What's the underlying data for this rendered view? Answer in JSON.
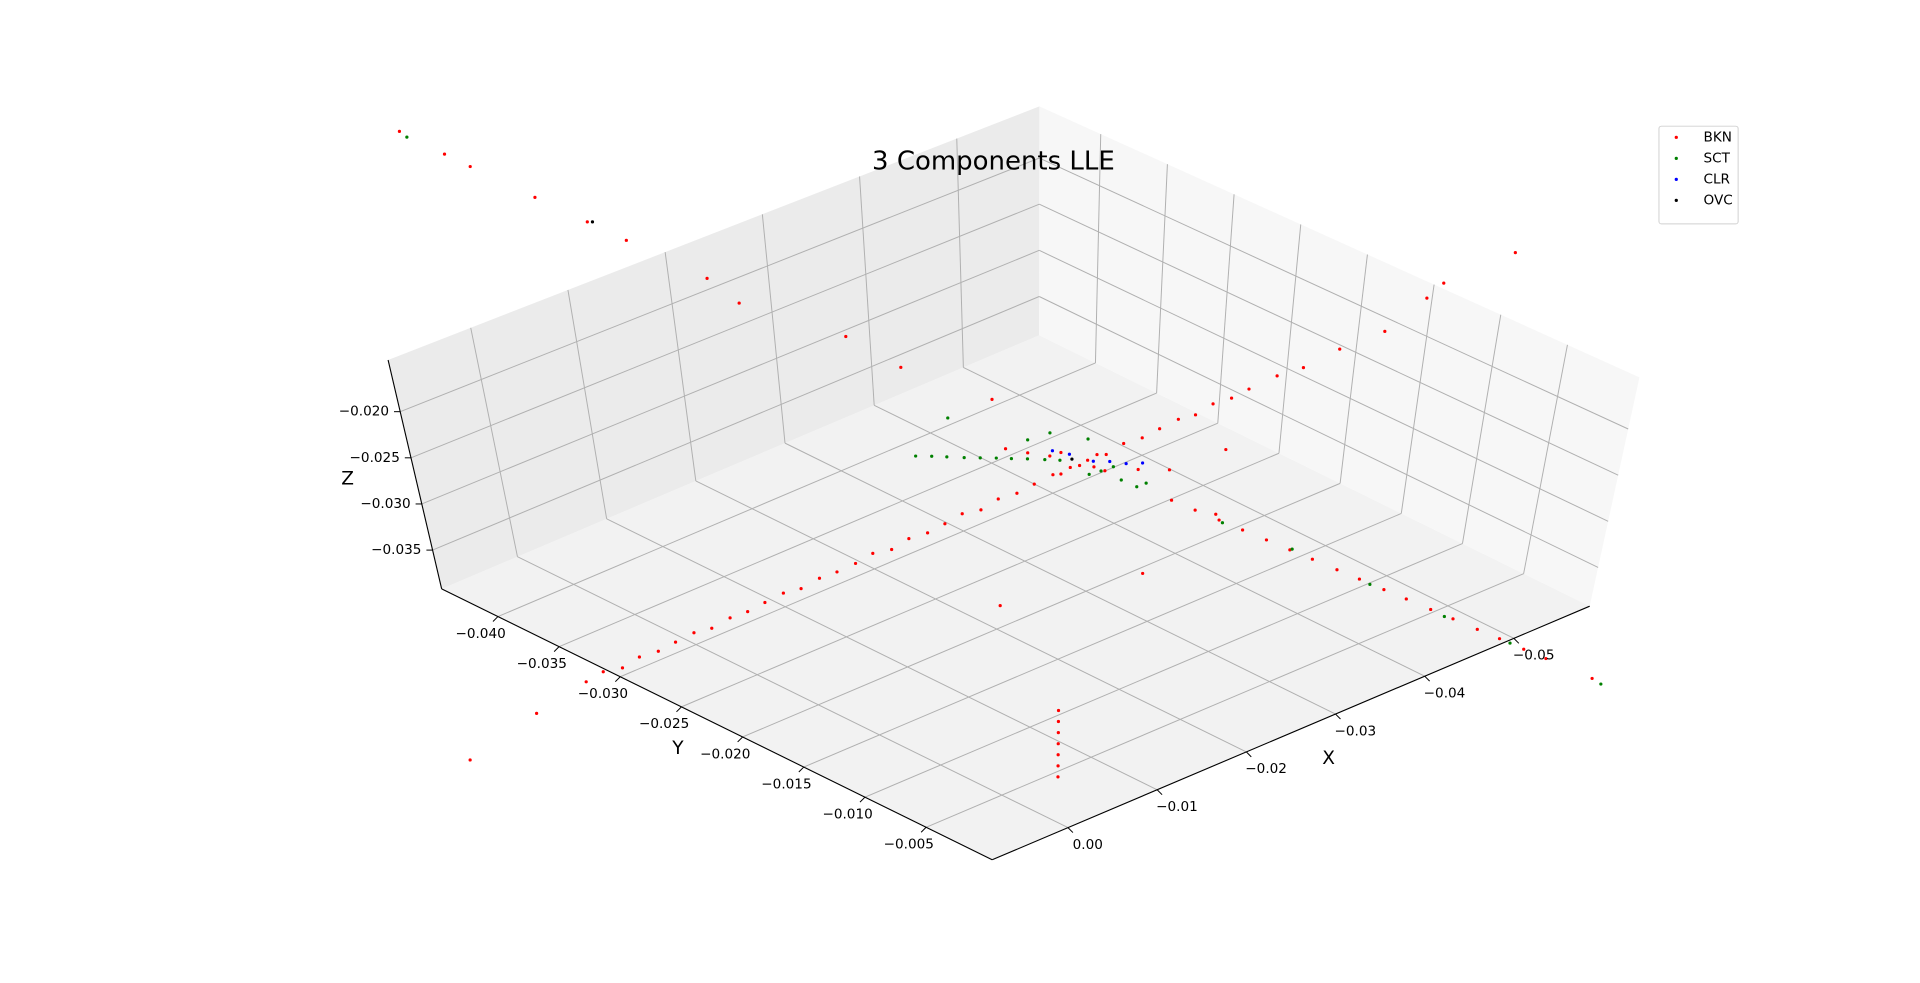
{
  "chart_data": {
    "type": "scatter3d",
    "title": "3 Components LLE",
    "xlabel": "X",
    "ylabel": "Y",
    "zlabel": "Z",
    "xlim": [
      -0.0585,
      0.0085
    ],
    "ylim": [
      -0.0446,
      0.0004
    ],
    "zlim": [
      -0.0392,
      -0.0144
    ],
    "xticks": [
      {
        "value": 0,
        "label": "0.00"
      },
      {
        "value": -0.01,
        "label": "−0.01"
      },
      {
        "value": -0.02,
        "label": "−0.02"
      },
      {
        "value": -0.03,
        "label": "−0.03"
      },
      {
        "value": -0.04,
        "label": "−0.04"
      },
      {
        "value": -0.05,
        "label": "−0.05"
      }
    ],
    "yticks": [
      {
        "value": -0.005,
        "label": "−0.005"
      },
      {
        "value": -0.01,
        "label": "−0.010"
      },
      {
        "value": -0.015,
        "label": "−0.015"
      },
      {
        "value": -0.02,
        "label": "−0.020"
      },
      {
        "value": -0.025,
        "label": "−0.025"
      },
      {
        "value": -0.03,
        "label": "−0.030"
      },
      {
        "value": -0.035,
        "label": "−0.035"
      },
      {
        "value": -0.04,
        "label": "−0.040"
      }
    ],
    "zticks": [
      {
        "value": -0.035,
        "label": "−0.035"
      },
      {
        "value": -0.03,
        "label": "−0.030"
      },
      {
        "value": -0.025,
        "label": "−0.025"
      },
      {
        "value": -0.02,
        "label": "−0.020"
      }
    ],
    "grid": true,
    "legend": "upper right",
    "series": [
      {
        "name": "BKN",
        "color": "#ff0000",
        "x": [
          0.024,
          0.022,
          0.02,
          0.018,
          0.016,
          0.014,
          0.012,
          0.01,
          0.008,
          0.006,
          0.004,
          0.002,
          0,
          -0.002,
          -0.004,
          -0.006,
          -0.008,
          -0.01,
          -0.012,
          -0.014,
          -0.016,
          -0.018,
          -0.02,
          -0.022,
          -0.024,
          -0.026,
          -0.028,
          -0.029,
          -0.03,
          -0.031,
          -0.032,
          -0.033,
          -0.034,
          -0.036,
          -0.038,
          -0.04,
          -0.042,
          -0.044,
          -0.046,
          -0.048,
          -0.05,
          -0.053,
          -0.056,
          -0.06,
          -0.065,
          -0.0331,
          -0.0336,
          -0.034,
          -0.0345,
          -0.0349,
          -0.0354,
          -0.0358,
          -0.0363,
          -0.0367,
          -0.0372,
          -0.0376,
          -0.0381,
          -0.0385,
          -0.039,
          -0.0394,
          -0.0399,
          -0.0403,
          -0.0412,
          -0.03,
          -0.032,
          -0.0305,
          -0.0325,
          -0.034,
          -0.036,
          -0.029,
          -0.028,
          -0.0056,
          -0.0056,
          -0.0056,
          -0.0056,
          -0.0056,
          -0.0056,
          -0.0056,
          -0.0201,
          -0.0198,
          -0.0197,
          -0.0195,
          -0.0194,
          -0.0193,
          -0.0191,
          -0.0185,
          -0.0225,
          -0.024,
          -0.028,
          -0.04,
          -0.025,
          -0.045,
          -0.015,
          0.03,
          0.037,
          -0.068,
          -0.072,
          -0.078
        ],
        "y": [
          -0.0199,
          -0.02,
          -0.02,
          -0.0201,
          -0.0201,
          -0.0202,
          -0.0202,
          -0.0203,
          -0.0203,
          -0.0204,
          -0.0205,
          -0.0205,
          -0.0206,
          -0.0206,
          -0.0207,
          -0.0207,
          -0.0208,
          -0.0208,
          -0.0209,
          -0.0209,
          -0.021,
          -0.0211,
          -0.0211,
          -0.0212,
          -0.0212,
          -0.0213,
          -0.0213,
          -0.0214,
          -0.0214,
          -0.0214,
          -0.0215,
          -0.0215,
          -0.0215,
          -0.0216,
          -0.0216,
          -0.0217,
          -0.0217,
          -0.0218,
          -0.0219,
          -0.0219,
          -0.022,
          -0.022,
          -0.0221,
          -0.0222,
          -0.0223,
          -0.0157,
          -0.0142,
          -0.0126,
          -0.0111,
          -0.0095,
          -0.008,
          -0.0065,
          -0.0049,
          -0.0034,
          -0.0018,
          -0.0003,
          0.0013,
          0.0028,
          0.0044,
          0.0059,
          0.0075,
          0.009,
          0.0121,
          -0.023,
          -0.021,
          -0.0225,
          -0.0205,
          -0.019,
          -0.018,
          -0.024,
          -0.025,
          -0.0045,
          -0.0045,
          -0.0045,
          -0.0045,
          -0.0045,
          -0.0045,
          -0.0045,
          -0.0646,
          -0.061,
          -0.059,
          -0.054,
          -0.05,
          -0.047,
          -0.0408,
          -0.038,
          -0.033,
          -0.03,
          -0.026,
          -0.017,
          -0.012,
          -0.02,
          -0.016,
          -0.0195,
          -0.02,
          -0.0215,
          -0.023,
          -0.022
        ],
        "z": [
          -0.0268,
          -0.0266,
          -0.027,
          -0.0267,
          -0.0269,
          -0.0268,
          -0.0266,
          -0.027,
          -0.0267,
          -0.0269,
          -0.0268,
          -0.0266,
          -0.027,
          -0.0267,
          -0.0269,
          -0.0268,
          -0.0266,
          -0.027,
          -0.0267,
          -0.0269,
          -0.0268,
          -0.0266,
          -0.027,
          -0.0267,
          -0.0269,
          -0.0268,
          -0.0266,
          -0.027,
          -0.0267,
          -0.0269,
          -0.0268,
          -0.0266,
          -0.027,
          -0.0267,
          -0.0269,
          -0.0268,
          -0.0266,
          -0.027,
          -0.0267,
          -0.0269,
          -0.0268,
          -0.0266,
          -0.027,
          -0.0267,
          -0.0269,
          -0.0278,
          -0.0281,
          -0.0283,
          -0.0286,
          -0.0288,
          -0.0291,
          -0.0293,
          -0.0296,
          -0.0298,
          -0.0301,
          -0.0303,
          -0.0306,
          -0.0308,
          -0.0311,
          -0.0313,
          -0.0316,
          -0.0318,
          -0.0323,
          -0.0265,
          -0.0272,
          -0.026,
          -0.0275,
          -0.027,
          -0.0272,
          -0.0264,
          -0.0262,
          -0.0392,
          -0.038,
          -0.0368,
          -0.0356,
          -0.0344,
          -0.0332,
          -0.032,
          -0.0144,
          -0.0144,
          -0.0144,
          -0.0144,
          -0.0144,
          -0.0144,
          -0.0144,
          -0.015,
          -0.017,
          -0.019,
          -0.0215,
          -0.033,
          -0.03,
          -0.03,
          -0.032,
          -0.0275,
          -0.03,
          -0.024,
          -0.025,
          -0.0235
        ]
      },
      {
        "name": "SCT",
        "color": "#008000",
        "x": [
          -0.0226,
          -0.0235,
          -0.0243,
          -0.0252,
          -0.0261,
          -0.027,
          -0.0278,
          -0.0287,
          -0.0296,
          -0.0304,
          -0.0318,
          -0.0322,
          -0.0325,
          -0.032,
          -0.0328,
          -0.0315,
          -0.0341,
          -0.0355,
          -0.0369,
          -0.0384,
          -0.0396,
          -0.0414,
          -0.03,
          -0.029,
          -0.032,
          -0.02,
          -0.026
        ],
        "y": [
          -0.0281,
          -0.0275,
          -0.0269,
          -0.0262,
          -0.0256,
          -0.025,
          -0.0244,
          -0.0238,
          -0.0231,
          -0.0225,
          -0.0203,
          -0.019,
          -0.018,
          -0.0195,
          -0.0175,
          -0.021,
          -0.0124,
          -0.0079,
          -0.0027,
          0.0022,
          0.0066,
          0.0127,
          -0.023,
          -0.024,
          -0.0215,
          -0.064,
          -0.028
        ],
        "z": [
          -0.0268,
          -0.0268,
          -0.0268,
          -0.0268,
          -0.0268,
          -0.0268,
          -0.0268,
          -0.0268,
          -0.0268,
          -0.0268,
          -0.0271,
          -0.0274,
          -0.0276,
          -0.0262,
          -0.027,
          -0.0278,
          -0.0285,
          -0.029,
          -0.03,
          -0.0309,
          -0.0314,
          -0.0326,
          -0.024,
          -0.025,
          -0.0245,
          -0.0146,
          -0.024
        ]
      },
      {
        "name": "CLR",
        "color": "#0000ff",
        "x": [
          -0.0322,
          -0.033,
          -0.0338,
          -0.0346,
          -0.031,
          -0.03
        ],
        "y": [
          -0.0212,
          -0.0205,
          -0.0198,
          -0.0191,
          -0.0222,
          -0.0228
        ],
        "z": [
          -0.0268,
          -0.0267,
          -0.0268,
          -0.0266,
          -0.0262,
          -0.0258
        ]
      },
      {
        "name": "OVC",
        "color": "#000000",
        "x": [
          -0.0199,
          -0.031
        ],
        "y": [
          -0.05,
          -0.022
        ],
        "z": [
          -0.0146,
          -0.0266
        ]
      }
    ]
  }
}
